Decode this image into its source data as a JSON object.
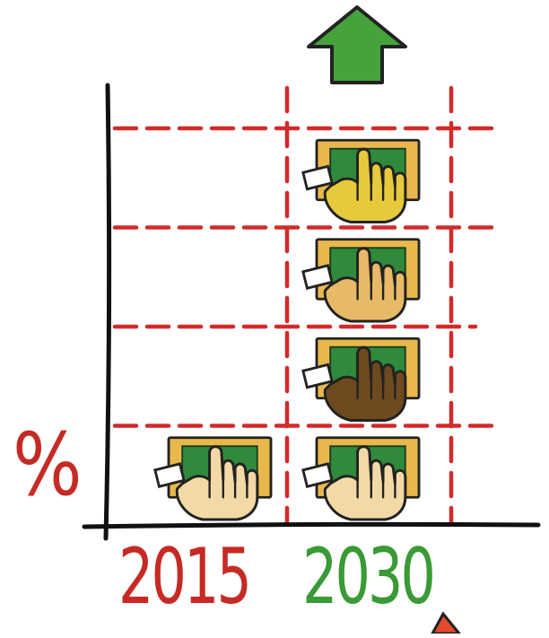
{
  "chart_data": {
    "type": "bar",
    "categories": [
      "2015",
      "2030"
    ],
    "series": [
      {
        "values": [
          1,
          4
        ]
      }
    ],
    "units": {
      "ylabel": "%"
    },
    "ylim": [
      0,
      4
    ],
    "grid": true,
    "trend_arrow": "up",
    "icon": "hand-holding-banknote-icon",
    "colors": {
      "grid": "#d42a2a",
      "axis": "#111111",
      "label_2015": "#c62a25",
      "label_2030": "#3a9a35",
      "arrow": "#46a33c",
      "note_frame": "#e9b84c",
      "note_center": "#2f8a3c",
      "hand_2015": "#f3d9a6",
      "hand_2030_tiers": [
        "#f3d9a6",
        "#6e4a1f",
        "#e8b967",
        "#e7c93c"
      ]
    }
  }
}
